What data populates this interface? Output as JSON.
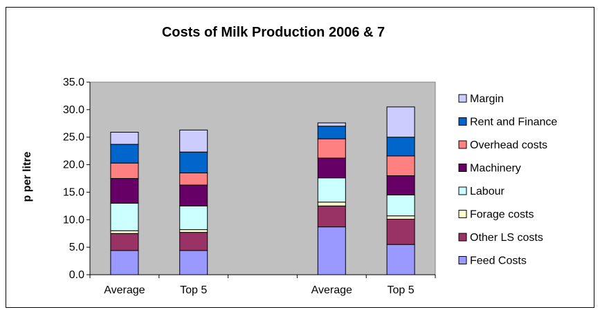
{
  "chart_data": {
    "type": "bar",
    "stacked": true,
    "title": "Costs of Milk Production 2006 & 7",
    "ylabel": "p per litre",
    "xlabel": "",
    "ylim": [
      0,
      35
    ],
    "yticks": [
      "0.0",
      "5.0",
      "10.0",
      "15.0",
      "20.0",
      "25.0",
      "30.0",
      "35.0"
    ],
    "categories": [
      "Average",
      "Top 5",
      "Average",
      "Top 5"
    ],
    "gap_after_index": 1,
    "grid": false,
    "legend_position": "right",
    "series": [
      {
        "name": "Feed Costs",
        "color": "#9999ff",
        "values": [
          4.4,
          4.4,
          8.7,
          5.5
        ]
      },
      {
        "name": "Other LS costs",
        "color": "#993366",
        "values": [
          3.1,
          3.3,
          3.8,
          4.6
        ]
      },
      {
        "name": "Forage costs",
        "color": "#ffffcc",
        "values": [
          0.5,
          0.5,
          0.7,
          0.6
        ]
      },
      {
        "name": "Labour",
        "color": "#ccffff",
        "values": [
          5.0,
          4.3,
          4.4,
          3.8
        ]
      },
      {
        "name": "Machinery",
        "color": "#660066",
        "values": [
          4.5,
          3.8,
          3.6,
          3.5
        ]
      },
      {
        "name": "Overhead costs",
        "color": "#ff8080",
        "values": [
          2.8,
          2.2,
          3.5,
          3.6
        ]
      },
      {
        "name": "Rent and Finance",
        "color": "#0066cc",
        "values": [
          3.4,
          3.8,
          2.3,
          3.4
        ]
      },
      {
        "name": "Margin",
        "color": "#ccccff",
        "values": [
          2.2,
          4.0,
          0.6,
          5.5
        ]
      }
    ],
    "plot_background": "#c0c0c0"
  }
}
